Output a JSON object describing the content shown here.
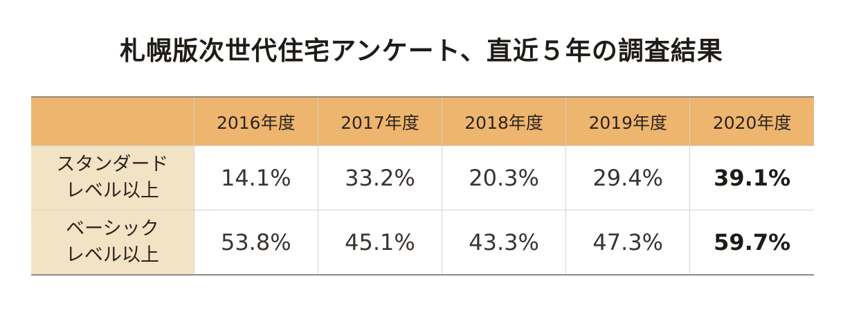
{
  "title": "札幌版次世代住宅アンケート、直近５年の調査結果",
  "table": {
    "columns": [
      "",
      "2016年度",
      "2017年度",
      "2018年度",
      "2019年度",
      "2020年度"
    ],
    "rows": [
      {
        "label_line1": "スタンダード",
        "label_line2": "レベル以上",
        "values": [
          "14.1%",
          "33.2%",
          "20.3%",
          "29.4%",
          "39.1%"
        ]
      },
      {
        "label_line1": "ベーシック",
        "label_line2": "レベル以上",
        "values": [
          "53.8%",
          "45.1%",
          "43.3%",
          "47.3%",
          "59.7%"
        ]
      }
    ],
    "highlight_column": "2020年度",
    "colors": {
      "header_bg": "#eeb56e",
      "label_bg": "#f2e3c5"
    }
  }
}
